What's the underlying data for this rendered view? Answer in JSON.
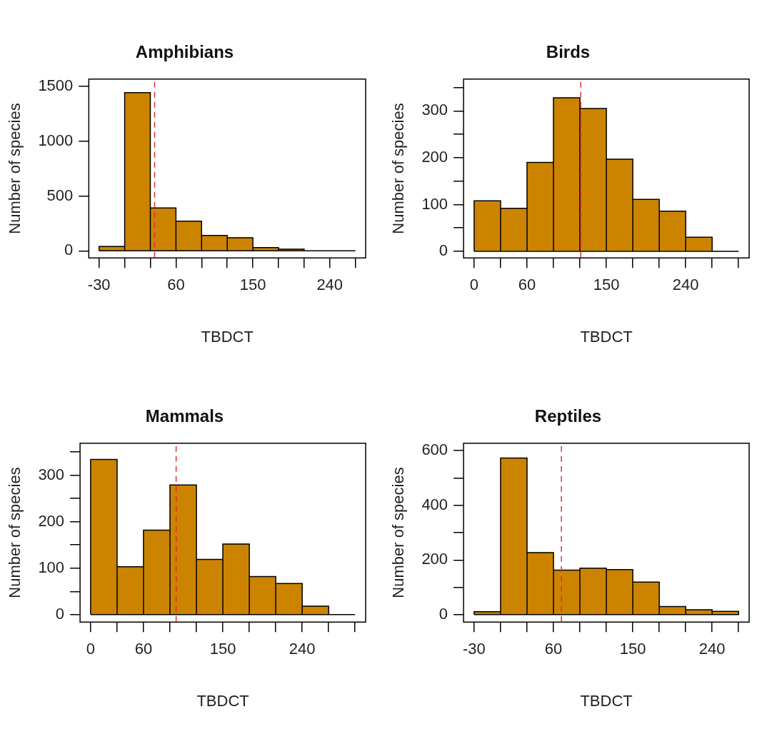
{
  "chart_data": [
    {
      "type": "histogram",
      "title": "Amphibians",
      "xlabel": "TBDCT",
      "ylabel": "Number of species",
      "color": "#cc8400",
      "bins": [
        -30,
        0,
        30,
        60,
        90,
        120,
        150,
        180,
        210,
        240,
        270
      ],
      "values": [
        40,
        1440,
        390,
        270,
        140,
        120,
        30,
        15,
        0,
        0
      ],
      "xlim": [
        -42,
        282
      ],
      "ylim": [
        -64,
        1564
      ],
      "xticks": [
        -30,
        {
          "value": 0,
          "label": null
        },
        {
          "value": 30,
          "label": null
        },
        60,
        {
          "value": 90,
          "label": null
        },
        {
          "value": 120,
          "label": null
        },
        150,
        {
          "value": 180,
          "label": null
        },
        {
          "value": 210,
          "label": null
        },
        240,
        {
          "value": 270,
          "label": null
        }
      ],
      "yticks": [
        0,
        500,
        1000,
        1500
      ],
      "ref_lines": [
        {
          "axis": "x",
          "value": 35,
          "color": "#e03030",
          "line_style": "dashed"
        }
      ]
    },
    {
      "type": "histogram",
      "title": "Birds",
      "xlabel": "TBDCT",
      "ylabel": "Number of species",
      "color": "#cc8400",
      "bins": [
        0,
        30,
        60,
        90,
        120,
        150,
        180,
        210,
        240,
        270,
        300
      ],
      "values": [
        108,
        92,
        190,
        328,
        305,
        197,
        111,
        86,
        30,
        0
      ],
      "xlim": [
        -12,
        312
      ],
      "ylim": [
        -14,
        368
      ],
      "xticks": [
        0,
        {
          "value": 30,
          "label": null
        },
        60,
        {
          "value": 90,
          "label": null
        },
        {
          "value": 120,
          "label": null
        },
        150,
        {
          "value": 180,
          "label": null
        },
        {
          "value": 210,
          "label": null
        },
        240,
        {
          "value": 270,
          "label": null
        },
        {
          "value": 300,
          "label": null
        }
      ],
      "yticks": [
        0,
        {
          "value": 50,
          "label": null
        },
        100,
        {
          "value": 150,
          "label": null
        },
        200,
        {
          "value": 250,
          "label": null
        },
        300,
        {
          "value": 350,
          "label": null
        }
      ],
      "ref_lines": [
        {
          "axis": "x",
          "value": 121,
          "color": "#e03030",
          "line_style": "dashed"
        }
      ]
    },
    {
      "type": "histogram",
      "title": "Mammals",
      "xlabel": "TBDCT",
      "ylabel": "Number of species",
      "color": "#cc8400",
      "bins": [
        0,
        30,
        60,
        90,
        120,
        150,
        180,
        210,
        240,
        270,
        300
      ],
      "values": [
        334,
        103,
        182,
        279,
        119,
        152,
        82,
        67,
        18,
        0
      ],
      "xlim": [
        -12,
        312
      ],
      "ylim": [
        -16,
        369
      ],
      "xticks": [
        0,
        {
          "value": 30,
          "label": null
        },
        60,
        {
          "value": 90,
          "label": null
        },
        {
          "value": 120,
          "label": null
        },
        150,
        {
          "value": 180,
          "label": null
        },
        {
          "value": 210,
          "label": null
        },
        240,
        {
          "value": 270,
          "label": null
        },
        {
          "value": 300,
          "label": null
        }
      ],
      "yticks": [
        0,
        {
          "value": 50,
          "label": null
        },
        100,
        {
          "value": 150,
          "label": null
        },
        200,
        {
          "value": 250,
          "label": null
        },
        300,
        {
          "value": 350,
          "label": null
        }
      ],
      "ref_lines": [
        {
          "axis": "x",
          "value": 97,
          "color": "#e03030",
          "line_style": "dashed"
        }
      ]
    },
    {
      "type": "histogram",
      "title": "Reptiles",
      "xlabel": "TBDCT",
      "ylabel": "Number of species",
      "color": "#cc8400",
      "bins": [
        -30,
        0,
        30,
        60,
        90,
        120,
        150,
        180,
        210,
        240,
        270
      ],
      "values": [
        11,
        573,
        227,
        163,
        170,
        165,
        119,
        30,
        18,
        12
      ],
      "xlim": [
        -42,
        282
      ],
      "ylim": [
        -27,
        627
      ],
      "xticks": [
        -30,
        {
          "value": 0,
          "label": null
        },
        {
          "value": 30,
          "label": null
        },
        60,
        {
          "value": 90,
          "label": null
        },
        {
          "value": 120,
          "label": null
        },
        150,
        {
          "value": 180,
          "label": null
        },
        {
          "value": 210,
          "label": null
        },
        240,
        {
          "value": 270,
          "label": null
        }
      ],
      "yticks": [
        0,
        {
          "value": 100,
          "label": null
        },
        200,
        {
          "value": 300,
          "label": null
        },
        400,
        {
          "value": 500,
          "label": null
        },
        600
      ],
      "ref_lines": [
        {
          "axis": "x",
          "value": 69,
          "color": "#e03030",
          "line_style": "dashed"
        }
      ]
    }
  ]
}
